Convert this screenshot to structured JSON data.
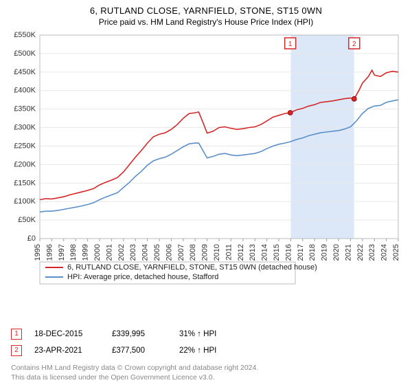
{
  "title_line1": "6, RUTLAND CLOSE, YARNFIELD, STONE, ST15 0WN",
  "title_line2": "Price paid vs. HM Land Registry's House Price Index (HPI)",
  "chart": {
    "type": "line",
    "background_color": "#ffffff",
    "grid_color": "#e8e8e8",
    "axis_color": "#999999",
    "x": {
      "years": [
        1995,
        1996,
        1997,
        1998,
        1999,
        2000,
        2001,
        2002,
        2003,
        2004,
        2005,
        2006,
        2007,
        2008,
        2009,
        2010,
        2011,
        2012,
        2013,
        2014,
        2015,
        2016,
        2017,
        2018,
        2019,
        2020,
        2021,
        2022,
        2023,
        2024,
        2025
      ]
    },
    "y": {
      "min": 0,
      "max": 550000,
      "step": 50000,
      "labels": [
        "£0",
        "£50K",
        "£100K",
        "£150K",
        "£200K",
        "£250K",
        "£300K",
        "£350K",
        "£400K",
        "£450K",
        "£500K",
        "£550K"
      ]
    },
    "highlight_band": {
      "start_year": 2016,
      "end_year": 2021.3,
      "color": "#dce8f7"
    },
    "series": [
      {
        "name": "property",
        "label": "6, RUTLAND CLOSE, YARNFIELD, STONE, ST15 0WN (detached house)",
        "color": "#d62728",
        "width": 1.6,
        "points": [
          [
            1995,
            105000
          ],
          [
            1995.5,
            108000
          ],
          [
            1996,
            107000
          ],
          [
            1996.5,
            110000
          ],
          [
            1997,
            113000
          ],
          [
            1997.5,
            118000
          ],
          [
            1998,
            122000
          ],
          [
            1998.5,
            126000
          ],
          [
            1999,
            130000
          ],
          [
            1999.5,
            135000
          ],
          [
            2000,
            145000
          ],
          [
            2000.5,
            152000
          ],
          [
            2001,
            158000
          ],
          [
            2001.5,
            165000
          ],
          [
            2002,
            180000
          ],
          [
            2002.5,
            200000
          ],
          [
            2003,
            220000
          ],
          [
            2003.5,
            238000
          ],
          [
            2004,
            258000
          ],
          [
            2004.5,
            275000
          ],
          [
            2005,
            282000
          ],
          [
            2005.5,
            286000
          ],
          [
            2006,
            295000
          ],
          [
            2006.5,
            308000
          ],
          [
            2007,
            325000
          ],
          [
            2007.5,
            338000
          ],
          [
            2008,
            340000
          ],
          [
            2008.3,
            342000
          ],
          [
            2008.7,
            310000
          ],
          [
            2009,
            285000
          ],
          [
            2009.5,
            290000
          ],
          [
            2010,
            300000
          ],
          [
            2010.5,
            302000
          ],
          [
            2011,
            298000
          ],
          [
            2011.5,
            295000
          ],
          [
            2012,
            297000
          ],
          [
            2012.5,
            300000
          ],
          [
            2013,
            302000
          ],
          [
            2013.5,
            308000
          ],
          [
            2014,
            318000
          ],
          [
            2014.5,
            328000
          ],
          [
            2015,
            333000
          ],
          [
            2015.5,
            338000
          ],
          [
            2015.96,
            339995
          ],
          [
            2016.5,
            348000
          ],
          [
            2017,
            352000
          ],
          [
            2017.5,
            358000
          ],
          [
            2018,
            362000
          ],
          [
            2018.5,
            368000
          ],
          [
            2019,
            370000
          ],
          [
            2019.5,
            372000
          ],
          [
            2020,
            375000
          ],
          [
            2020.5,
            378000
          ],
          [
            2021,
            380000
          ],
          [
            2021.31,
            377500
          ],
          [
            2021.7,
            400000
          ],
          [
            2022,
            420000
          ],
          [
            2022.5,
            438000
          ],
          [
            2022.8,
            455000
          ],
          [
            2023,
            442000
          ],
          [
            2023.5,
            438000
          ],
          [
            2024,
            448000
          ],
          [
            2024.5,
            452000
          ],
          [
            2025,
            450000
          ]
        ]
      },
      {
        "name": "hpi",
        "label": "HPI: Average price, detached house, Stafford",
        "color": "#5b8fc9",
        "width": 1.6,
        "points": [
          [
            1995,
            72000
          ],
          [
            1995.5,
            74000
          ],
          [
            1996,
            74000
          ],
          [
            1996.5,
            76000
          ],
          [
            1997,
            79000
          ],
          [
            1997.5,
            82000
          ],
          [
            1998,
            85000
          ],
          [
            1998.5,
            88000
          ],
          [
            1999,
            92000
          ],
          [
            1999.5,
            97000
          ],
          [
            2000,
            105000
          ],
          [
            2000.5,
            112000
          ],
          [
            2001,
            118000
          ],
          [
            2001.5,
            124000
          ],
          [
            2002,
            138000
          ],
          [
            2002.5,
            152000
          ],
          [
            2003,
            168000
          ],
          [
            2003.5,
            182000
          ],
          [
            2004,
            198000
          ],
          [
            2004.5,
            210000
          ],
          [
            2005,
            216000
          ],
          [
            2005.5,
            220000
          ],
          [
            2006,
            228000
          ],
          [
            2006.5,
            238000
          ],
          [
            2007,
            248000
          ],
          [
            2007.5,
            256000
          ],
          [
            2008,
            258000
          ],
          [
            2008.3,
            258000
          ],
          [
            2008.7,
            235000
          ],
          [
            2009,
            218000
          ],
          [
            2009.5,
            222000
          ],
          [
            2010,
            228000
          ],
          [
            2010.5,
            230000
          ],
          [
            2011,
            226000
          ],
          [
            2011.5,
            224000
          ],
          [
            2012,
            226000
          ],
          [
            2012.5,
            228000
          ],
          [
            2013,
            230000
          ],
          [
            2013.5,
            235000
          ],
          [
            2014,
            243000
          ],
          [
            2014.5,
            250000
          ],
          [
            2015,
            255000
          ],
          [
            2015.5,
            258000
          ],
          [
            2016,
            262000
          ],
          [
            2016.5,
            268000
          ],
          [
            2017,
            272000
          ],
          [
            2017.5,
            278000
          ],
          [
            2018,
            282000
          ],
          [
            2018.5,
            286000
          ],
          [
            2019,
            288000
          ],
          [
            2019.5,
            290000
          ],
          [
            2020,
            292000
          ],
          [
            2020.5,
            296000
          ],
          [
            2021,
            302000
          ],
          [
            2021.5,
            318000
          ],
          [
            2022,
            338000
          ],
          [
            2022.5,
            352000
          ],
          [
            2023,
            358000
          ],
          [
            2023.5,
            360000
          ],
          [
            2024,
            368000
          ],
          [
            2024.5,
            372000
          ],
          [
            2025,
            375000
          ]
        ]
      }
    ],
    "sale_points": [
      {
        "num": "1",
        "year": 2015.96,
        "price": 339995,
        "color": "#d62728"
      },
      {
        "num": "2",
        "year": 2021.31,
        "price": 377500,
        "color": "#d62728"
      }
    ],
    "label_fontsize": 11
  },
  "legend": {
    "items": [
      {
        "color": "#d62728",
        "label": "6, RUTLAND CLOSE, YARNFIELD, STONE, ST15 0WN (detached house)"
      },
      {
        "color": "#5b8fc9",
        "label": "HPI: Average price, detached house, Stafford"
      }
    ]
  },
  "sales": [
    {
      "num": "1",
      "date": "18-DEC-2015",
      "price": "£339,995",
      "delta": "31% ↑ HPI",
      "color": "#d62728"
    },
    {
      "num": "2",
      "date": "23-APR-2021",
      "price": "£377,500",
      "delta": "22% ↑ HPI",
      "color": "#d62728"
    }
  ],
  "attrib_line1": "Contains HM Land Registry data © Crown copyright and database right 2024.",
  "attrib_line2": "This data is licensed under the Open Government Licence v3.0."
}
